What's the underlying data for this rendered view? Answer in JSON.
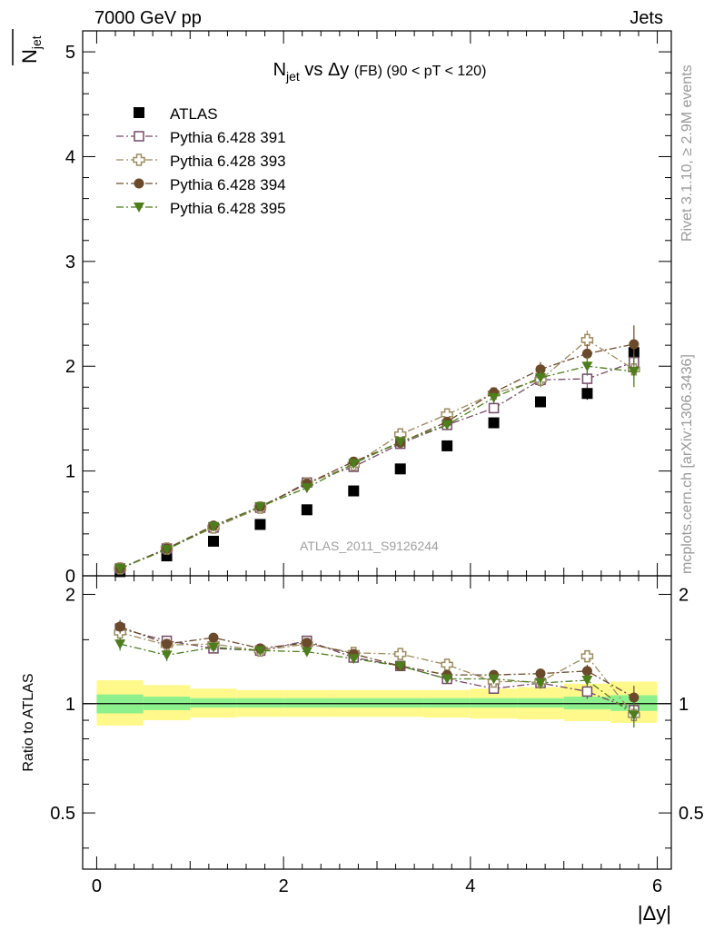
{
  "header": {
    "energy_label": "7000 GeV pp",
    "category_label": "Jets",
    "analysis_id": "ATLAS_2011_S9126244",
    "rivet_label": "Rivet 3.1.10, ≥ 2.9M events",
    "mcplots_label": "mcplots.cern.ch [arXiv:1306.3436]"
  },
  "chart_data": [
    {
      "type": "scatter",
      "title": "N_jet vs Δy (FB) (90 < pT < 120)",
      "title_parts": {
        "main": "N",
        "sub": "jet",
        "rest": " vs Δy ",
        "small": "(FB) (90 < pT < 120)"
      },
      "ylabel": "N_jet",
      "ylabel_parts": {
        "main": "N",
        "sub": "jet"
      },
      "xlim": [
        -0.15,
        6.15
      ],
      "ylim": [
        0,
        5.2
      ],
      "xticks": [
        0,
        2,
        4,
        6
      ],
      "yticks": [
        0,
        1,
        2,
        3,
        4,
        5
      ],
      "ytick_labels": [
        "0",
        "1",
        "2",
        "3",
        "4",
        "5"
      ],
      "x": [
        0.25,
        0.75,
        1.25,
        1.75,
        2.25,
        2.75,
        3.25,
        3.75,
        4.25,
        4.75,
        5.25,
        5.75
      ],
      "series": [
        {
          "name": "ATLAS",
          "color": "#000000",
          "marker": "square-filled",
          "values": [
            0.04,
            0.19,
            0.33,
            0.49,
            0.63,
            0.81,
            1.02,
            1.24,
            1.46,
            1.66,
            1.74,
            2.13
          ],
          "errors": [
            0.01,
            0.01,
            0.02,
            0.02,
            0.02,
            0.03,
            0.03,
            0.04,
            0.05,
            0.05,
            0.06,
            0.09
          ]
        },
        {
          "name": "Pythia 6.428 391",
          "color": "#734a68",
          "marker": "square-open",
          "values": [
            0.07,
            0.26,
            0.46,
            0.65,
            0.89,
            1.04,
            1.26,
            1.44,
            1.6,
            1.87,
            1.88,
            2.04
          ],
          "errors": [
            0.01,
            0.01,
            0.01,
            0.02,
            0.02,
            0.03,
            0.03,
            0.04,
            0.05,
            0.07,
            0.09,
            0.15
          ]
        },
        {
          "name": "Pythia 6.428 393",
          "color": "#9b8b60",
          "marker": "cross-open",
          "values": [
            0.07,
            0.26,
            0.46,
            0.65,
            0.88,
            1.06,
            1.35,
            1.54,
            1.74,
            1.87,
            2.25,
            1.97
          ],
          "errors": [
            0.01,
            0.01,
            0.01,
            0.02,
            0.02,
            0.03,
            0.03,
            0.04,
            0.05,
            0.07,
            0.09,
            0.15
          ]
        },
        {
          "name": "Pythia 6.428 394",
          "color": "#6b4a2b",
          "marker": "circle-filled",
          "values": [
            0.07,
            0.26,
            0.48,
            0.66,
            0.88,
            1.09,
            1.27,
            1.47,
            1.75,
            1.97,
            2.12,
            2.21
          ],
          "errors": [
            0.01,
            0.01,
            0.01,
            0.02,
            0.02,
            0.03,
            0.03,
            0.04,
            0.05,
            0.07,
            0.09,
            0.18
          ]
        },
        {
          "name": "Pythia 6.428 395",
          "color": "#4e7d1e",
          "marker": "triangle-down-filled",
          "values": [
            0.07,
            0.25,
            0.47,
            0.66,
            0.84,
            1.07,
            1.28,
            1.44,
            1.7,
            1.89,
            2.0,
            1.95
          ],
          "errors": [
            0.01,
            0.01,
            0.01,
            0.02,
            0.02,
            0.03,
            0.03,
            0.04,
            0.05,
            0.07,
            0.09,
            0.15
          ]
        }
      ],
      "legend": {
        "position": "top-left"
      }
    },
    {
      "type": "scatter",
      "title": "",
      "ylabel": "Ratio to ATLAS",
      "xlabel": "|Δy|",
      "xlim": [
        -0.15,
        6.15
      ],
      "ylim": [
        0.35,
        2.25
      ],
      "log_scale_y": true,
      "xticks": [
        0,
        2,
        4,
        6
      ],
      "xtick_labels": [
        "0",
        "2",
        "4",
        "6"
      ],
      "yticks": [
        0.5,
        1,
        2
      ],
      "ytick_labels": [
        "0.5",
        "1",
        "2"
      ],
      "reference_line": 1,
      "bands": {
        "x_edges": [
          0.0,
          0.5,
          1.0,
          1.5,
          2.0,
          2.5,
          3.0,
          3.5,
          4.0,
          4.5,
          5.0,
          5.5,
          6.0
        ],
        "stat_color": "#8cf08c",
        "total_color": "#fff98c",
        "stat_low": [
          0.94,
          0.96,
          0.975,
          0.975,
          0.975,
          0.975,
          0.975,
          0.975,
          0.975,
          0.975,
          0.965,
          0.955
        ],
        "stat_high": [
          1.06,
          1.045,
          1.035,
          1.035,
          1.035,
          1.035,
          1.035,
          1.035,
          1.035,
          1.035,
          1.045,
          1.055
        ],
        "total_low": [
          0.87,
          0.9,
          0.915,
          0.92,
          0.92,
          0.92,
          0.92,
          0.915,
          0.91,
          0.905,
          0.895,
          0.885
        ],
        "total_high": [
          1.16,
          1.125,
          1.1,
          1.09,
          1.09,
          1.09,
          1.09,
          1.09,
          1.1,
          1.11,
          1.135,
          1.15
        ]
      },
      "x": [
        0.25,
        0.75,
        1.25,
        1.75,
        2.25,
        2.75,
        3.25,
        3.75,
        4.25,
        4.75,
        5.25,
        5.75
      ],
      "series": [
        {
          "name": "Pythia 6.428 391",
          "color": "#734a68",
          "marker": "square-open",
          "values": [
            1.61,
            1.49,
            1.42,
            1.4,
            1.49,
            1.34,
            1.27,
            1.17,
            1.1,
            1.14,
            1.08,
            0.96
          ],
          "errors": [
            0.06,
            0.05,
            0.03,
            0.03,
            0.03,
            0.03,
            0.03,
            0.03,
            0.03,
            0.04,
            0.05,
            0.07
          ]
        },
        {
          "name": "Pythia 6.428 393",
          "color": "#9b8b60",
          "marker": "cross-open",
          "values": [
            1.57,
            1.45,
            1.46,
            1.4,
            1.46,
            1.38,
            1.37,
            1.28,
            1.15,
            1.15,
            1.35,
            0.93
          ],
          "errors": [
            0.06,
            0.05,
            0.03,
            0.03,
            0.03,
            0.03,
            0.03,
            0.03,
            0.03,
            0.04,
            0.05,
            0.07
          ]
        },
        {
          "name": "Pythia 6.428 394",
          "color": "#6b4a2b",
          "marker": "circle-filled",
          "values": [
            1.63,
            1.46,
            1.52,
            1.42,
            1.47,
            1.37,
            1.27,
            1.2,
            1.2,
            1.21,
            1.23,
            1.04
          ],
          "errors": [
            0.07,
            0.05,
            0.03,
            0.03,
            0.03,
            0.03,
            0.03,
            0.03,
            0.03,
            0.04,
            0.05,
            0.08
          ]
        },
        {
          "name": "Pythia 6.428 395",
          "color": "#4e7d1e",
          "marker": "triangle-down-filled",
          "values": [
            1.46,
            1.36,
            1.43,
            1.4,
            1.39,
            1.33,
            1.27,
            1.17,
            1.17,
            1.14,
            1.16,
            0.93
          ],
          "errors": [
            0.06,
            0.05,
            0.03,
            0.03,
            0.03,
            0.03,
            0.03,
            0.03,
            0.03,
            0.04,
            0.05,
            0.07
          ]
        }
      ]
    }
  ]
}
